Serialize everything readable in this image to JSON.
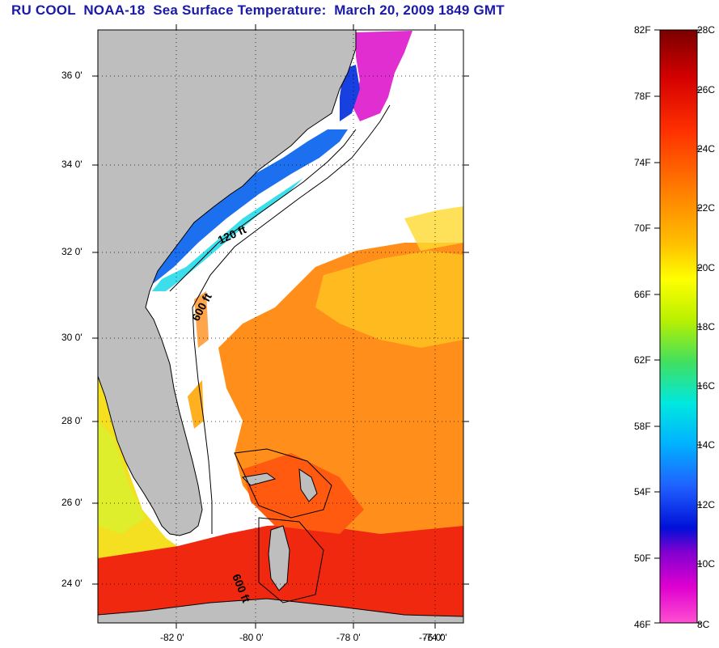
{
  "title": "RU COOL  NOAA-18  Sea Surface Temperature:  March 20, 2009 1849 GMT",
  "map": {
    "lat_labels": [
      "36 0'",
      "34 0'",
      "32 0'",
      "30 0'",
      "28 0'",
      "26 0'",
      "24 0'"
    ],
    "lon_labels": [
      "-82 0'",
      "-80 0'",
      "-78 0'",
      "-76 0'",
      "-74 0'"
    ],
    "isobath_labels": [
      "120 ft",
      "600 ft",
      "600 ft"
    ]
  },
  "colorbar": {
    "fahrenheit_labels": [
      "82F",
      "78F",
      "74F",
      "70F",
      "66F",
      "62F",
      "58F",
      "54F",
      "50F",
      "46F"
    ],
    "celsius_labels": [
      "28C",
      "26C",
      "24C",
      "22C",
      "20C",
      "18C",
      "16C",
      "14C",
      "12C",
      "10C",
      "8C"
    ],
    "gradient_stops": [
      "#7a0000",
      "#d40000",
      "#ff3000",
      "#ff7d00",
      "#ffbf00",
      "#ffff00",
      "#b8f000",
      "#40e060",
      "#00e8e0",
      "#00b0ff",
      "#2060ff",
      "#0010d8",
      "#8000d0",
      "#e000d0",
      "#ff50d0"
    ]
  },
  "colors": {
    "title": "#1a1aa6",
    "land": "#bebebe",
    "no_data": "#ffffff"
  }
}
